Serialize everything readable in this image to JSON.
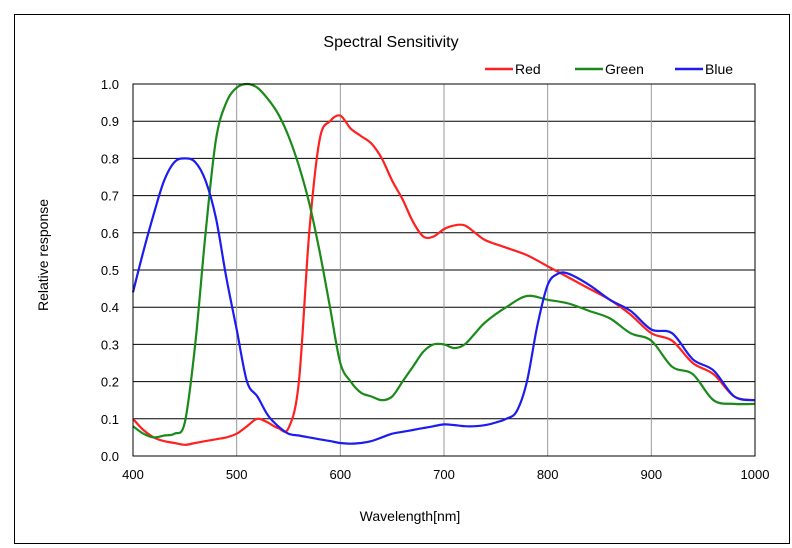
{
  "chart_data": {
    "type": "line",
    "title": "Spectral Sensitivity",
    "xlabel": "Wavelength[nm]",
    "ylabel": "Relative response",
    "xlim": [
      400,
      1000
    ],
    "ylim": [
      0,
      1.0
    ],
    "xticks": [
      400,
      500,
      600,
      700,
      800,
      900,
      1000
    ],
    "yticks": [
      0.0,
      0.1,
      0.2,
      0.3,
      0.4,
      0.5,
      0.6,
      0.7,
      0.8,
      0.9,
      1.0
    ],
    "ytick_labels": [
      "0.0",
      "0.1",
      "0.2",
      "0.3",
      "0.4",
      "0.5",
      "0.6",
      "0.7",
      "0.8",
      "0.9",
      "1.0"
    ],
    "grid": true,
    "legend_position": "top-right",
    "series": [
      {
        "name": "Red",
        "color": "#ff2020",
        "x": [
          400,
          410,
          420,
          430,
          440,
          450,
          460,
          470,
          480,
          490,
          500,
          510,
          520,
          530,
          540,
          550,
          560,
          570,
          580,
          590,
          600,
          610,
          620,
          630,
          640,
          650,
          660,
          670,
          680,
          690,
          700,
          710,
          720,
          730,
          740,
          760,
          780,
          800,
          820,
          840,
          860,
          880,
          900,
          920,
          940,
          960,
          980,
          1000
        ],
        "y": [
          0.1,
          0.07,
          0.05,
          0.04,
          0.035,
          0.03,
          0.035,
          0.04,
          0.045,
          0.05,
          0.06,
          0.08,
          0.1,
          0.09,
          0.075,
          0.075,
          0.2,
          0.6,
          0.85,
          0.9,
          0.915,
          0.88,
          0.86,
          0.84,
          0.8,
          0.74,
          0.69,
          0.63,
          0.59,
          0.59,
          0.61,
          0.62,
          0.62,
          0.6,
          0.58,
          0.56,
          0.54,
          0.51,
          0.48,
          0.45,
          0.42,
          0.38,
          0.33,
          0.31,
          0.25,
          0.22,
          0.16,
          0.15
        ]
      },
      {
        "name": "Green",
        "color": "#1a8a1a",
        "x": [
          400,
          410,
          420,
          430,
          440,
          450,
          460,
          470,
          480,
          490,
          500,
          510,
          520,
          530,
          540,
          550,
          560,
          570,
          580,
          590,
          600,
          610,
          620,
          630,
          640,
          650,
          660,
          670,
          680,
          690,
          700,
          710,
          720,
          730,
          740,
          760,
          780,
          800,
          820,
          840,
          860,
          880,
          900,
          920,
          940,
          960,
          980,
          1000
        ],
        "y": [
          0.08,
          0.06,
          0.05,
          0.055,
          0.06,
          0.09,
          0.3,
          0.6,
          0.85,
          0.95,
          0.99,
          1.0,
          0.99,
          0.96,
          0.92,
          0.86,
          0.78,
          0.68,
          0.55,
          0.4,
          0.25,
          0.2,
          0.17,
          0.16,
          0.15,
          0.16,
          0.2,
          0.24,
          0.28,
          0.3,
          0.3,
          0.29,
          0.3,
          0.33,
          0.36,
          0.4,
          0.43,
          0.42,
          0.41,
          0.39,
          0.37,
          0.33,
          0.31,
          0.24,
          0.22,
          0.15,
          0.14,
          0.14
        ]
      },
      {
        "name": "Blue",
        "color": "#1c1cf0",
        "x": [
          400,
          410,
          420,
          430,
          440,
          450,
          460,
          470,
          480,
          490,
          500,
          510,
          520,
          530,
          540,
          550,
          560,
          570,
          580,
          590,
          600,
          610,
          620,
          630,
          640,
          650,
          660,
          670,
          680,
          690,
          700,
          710,
          720,
          730,
          740,
          750,
          760,
          770,
          780,
          790,
          800,
          810,
          820,
          840,
          860,
          880,
          900,
          920,
          940,
          960,
          980,
          1000
        ],
        "y": [
          0.44,
          0.55,
          0.65,
          0.74,
          0.79,
          0.8,
          0.79,
          0.74,
          0.64,
          0.48,
          0.34,
          0.2,
          0.16,
          0.11,
          0.08,
          0.06,
          0.055,
          0.05,
          0.045,
          0.04,
          0.035,
          0.033,
          0.035,
          0.04,
          0.05,
          0.06,
          0.065,
          0.07,
          0.075,
          0.08,
          0.085,
          0.083,
          0.08,
          0.08,
          0.083,
          0.09,
          0.1,
          0.12,
          0.2,
          0.35,
          0.46,
          0.49,
          0.49,
          0.46,
          0.42,
          0.39,
          0.34,
          0.33,
          0.26,
          0.23,
          0.16,
          0.15
        ]
      }
    ]
  }
}
